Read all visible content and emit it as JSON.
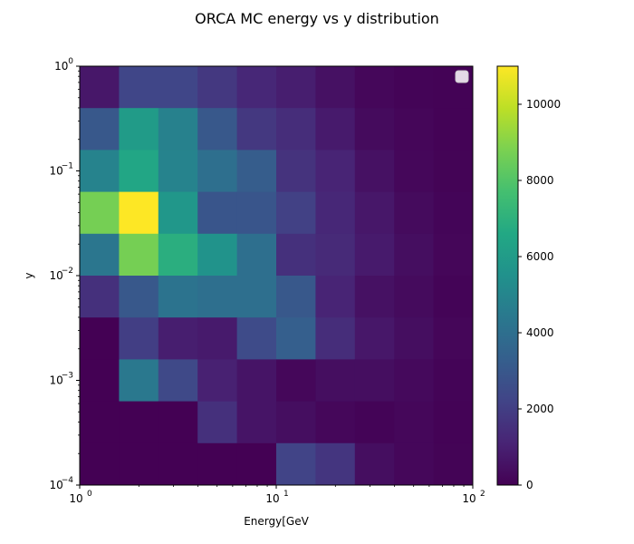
{
  "chart_data": {
    "type": "heatmap",
    "title": "ORCA MC energy vs y distribution",
    "xlabel": "Energy[GeV",
    "ylabel": "y",
    "xscale": "log",
    "yscale": "log",
    "xlim": [
      1,
      100
    ],
    "ylim": [
      0.0001,
      1
    ],
    "x_ticks": [
      {
        "value": 1,
        "label": "10",
        "exp": "0"
      },
      {
        "value": 10,
        "label": "10",
        "exp": "1"
      },
      {
        "value": 100,
        "label": "10",
        "exp": "2"
      }
    ],
    "y_ticks": [
      {
        "value": 0.0001,
        "label": "10",
        "exp": "−4"
      },
      {
        "value": 0.001,
        "label": "10",
        "exp": "−3"
      },
      {
        "value": 0.01,
        "label": "10",
        "exp": "−2"
      },
      {
        "value": 0.1,
        "label": "10",
        "exp": "−1"
      },
      {
        "value": 1,
        "label": "10",
        "exp": "0"
      }
    ],
    "x_edges": [
      1,
      1.585,
      2.512,
      3.981,
      6.31,
      10,
      15.85,
      25.12,
      39.81,
      63.1,
      100
    ],
    "y_edges": [
      0.0001,
      0.0002512,
      0.000631,
      0.001585,
      0.003981,
      0.01,
      0.02512,
      0.0631,
      0.1585,
      0.3981,
      1
    ],
    "counts_rows_top_to_bottom": [
      [
        700,
        2300,
        2300,
        1800,
        1200,
        900,
        500,
        200,
        100,
        50
      ],
      [
        3000,
        6000,
        4800,
        3000,
        1800,
        1400,
        800,
        300,
        150,
        60
      ],
      [
        4900,
        6500,
        4900,
        4000,
        3200,
        1600,
        1100,
        500,
        200,
        80
      ],
      [
        8700,
        11000,
        5800,
        2900,
        2900,
        2100,
        1200,
        700,
        300,
        120
      ],
      [
        4300,
        8700,
        6900,
        5600,
        4000,
        1500,
        1300,
        800,
        400,
        150
      ],
      [
        1500,
        3000,
        4200,
        4000,
        4000,
        3000,
        1100,
        500,
        300,
        100
      ],
      [
        0,
        2000,
        900,
        800,
        2500,
        3300,
        1400,
        700,
        400,
        150
      ],
      [
        0,
        4400,
        2400,
        1000,
        600,
        200,
        400,
        400,
        250,
        100
      ],
      [
        0,
        0,
        0,
        1500,
        600,
        400,
        200,
        100,
        200,
        60
      ],
      [
        0,
        0,
        0,
        0,
        0,
        2200,
        1700,
        400,
        200,
        80
      ]
    ],
    "colorbar": {
      "colormap": "viridis",
      "vmin": 0,
      "vmax": 11000,
      "ticks": [
        {
          "value": 0,
          "label": "0"
        },
        {
          "value": 2000,
          "label": "2000"
        },
        {
          "value": 4000,
          "label": "4000"
        },
        {
          "value": 6000,
          "label": "6000"
        },
        {
          "value": 8000,
          "label": "8000"
        },
        {
          "value": 10000,
          "label": "10000"
        }
      ]
    },
    "legend": {
      "placement": "top-right",
      "entries": []
    }
  }
}
